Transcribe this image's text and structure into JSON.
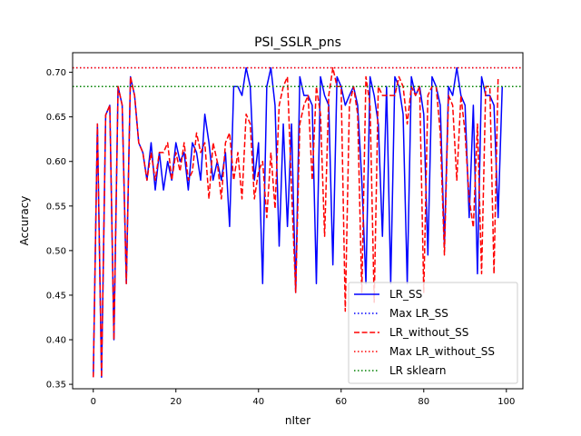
{
  "chart_data": {
    "type": "line",
    "title": "PSI_SSLR_pns",
    "xlabel": "nIter",
    "ylabel": "Accuracy",
    "xlim": [
      -5,
      104
    ],
    "ylim": [
      0.345,
      0.722
    ],
    "xticks": [
      0,
      20,
      40,
      60,
      80,
      100
    ],
    "yticks": [
      0.35,
      0.4,
      0.45,
      0.5,
      0.55,
      0.6,
      0.65,
      0.7
    ],
    "ytick_labels": [
      "0.35",
      "0.40",
      "0.45",
      "0.50",
      "0.55",
      "0.60",
      "0.65",
      "0.70"
    ],
    "grid": false,
    "legend_position": "lower-right",
    "series": [
      {
        "name": "LR_SS",
        "color": "#0000ff",
        "style": "solid",
        "x": [
          0,
          1,
          2,
          3,
          4,
          5,
          6,
          7,
          8,
          9,
          10,
          11,
          12,
          13,
          14,
          15,
          16,
          17,
          18,
          19,
          20,
          21,
          22,
          23,
          24,
          25,
          26,
          27,
          28,
          29,
          30,
          31,
          32,
          33,
          34,
          35,
          36,
          37,
          38,
          39,
          40,
          41,
          42,
          43,
          44,
          45,
          46,
          47,
          48,
          49,
          50,
          51,
          52,
          53,
          54,
          55,
          56,
          57,
          58,
          59,
          60,
          61,
          62,
          63,
          64,
          65,
          66,
          67,
          68,
          69,
          70,
          71,
          72,
          73,
          74,
          75,
          76,
          77,
          78,
          79,
          80,
          81,
          82,
          83,
          84,
          85,
          86,
          87,
          88,
          89,
          90,
          91,
          92,
          93,
          94,
          95,
          96,
          97,
          98,
          99
        ],
        "y": [
          0.358,
          0.642,
          0.358,
          0.652,
          0.663,
          0.4,
          0.684,
          0.663,
          0.463,
          0.695,
          0.674,
          0.621,
          0.61,
          0.579,
          0.621,
          0.568,
          0.61,
          0.568,
          0.6,
          0.579,
          0.621,
          0.6,
          0.61,
          0.568,
          0.621,
          0.61,
          0.579,
          0.653,
          0.621,
          0.579,
          0.6,
          0.579,
          0.61,
          0.527,
          0.684,
          0.684,
          0.674,
          0.705,
          0.684,
          0.579,
          0.621,
          0.463,
          0.684,
          0.705,
          0.663,
          0.505,
          0.642,
          0.527,
          0.642,
          0.453,
          0.695,
          0.674,
          0.674,
          0.663,
          0.463,
          0.695,
          0.674,
          0.663,
          0.484,
          0.695,
          0.684,
          0.663,
          0.674,
          0.684,
          0.663,
          0.579,
          0.463,
          0.695,
          0.674,
          0.642,
          0.516,
          0.684,
          0.463,
          0.695,
          0.684,
          0.653,
          0.463,
          0.695,
          0.674,
          0.684,
          0.653,
          0.495,
          0.695,
          0.684,
          0.663,
          0.505,
          0.684,
          0.674,
          0.705,
          0.674,
          0.663,
          0.537,
          0.663,
          0.474,
          0.695,
          0.674,
          0.674,
          0.663,
          0.537,
          0.684
        ]
      },
      {
        "name": "Max LR_SS",
        "color": "#0000ff",
        "style": "dotted",
        "y_constant": 0.705
      },
      {
        "name": "LR_without_SS",
        "color": "#ff0000",
        "style": "dashed",
        "x": [
          0,
          1,
          2,
          3,
          4,
          5,
          6,
          7,
          8,
          9,
          10,
          11,
          12,
          13,
          14,
          15,
          16,
          17,
          18,
          19,
          20,
          21,
          22,
          23,
          24,
          25,
          26,
          27,
          28,
          29,
          30,
          31,
          32,
          33,
          34,
          35,
          36,
          37,
          38,
          39,
          40,
          41,
          42,
          43,
          44,
          45,
          46,
          47,
          48,
          49,
          50,
          51,
          52,
          53,
          54,
          55,
          56,
          57,
          58,
          59,
          60,
          61,
          62,
          63,
          64,
          65,
          66,
          67,
          68,
          69,
          70,
          71,
          72,
          73,
          74,
          75,
          76,
          77,
          78,
          79,
          80,
          81,
          82,
          83,
          84,
          85,
          86,
          87,
          88,
          89,
          90,
          91,
          92,
          93,
          94,
          95,
          96,
          97,
          98
        ],
        "y": [
          0.358,
          0.642,
          0.358,
          0.652,
          0.663,
          0.4,
          0.684,
          0.663,
          0.463,
          0.695,
          0.674,
          0.621,
          0.61,
          0.579,
          0.61,
          0.579,
          0.61,
          0.61,
          0.621,
          0.579,
          0.61,
          0.589,
          0.621,
          0.579,
          0.589,
          0.632,
          0.61,
          0.621,
          0.558,
          0.621,
          0.6,
          0.558,
          0.621,
          0.632,
          0.579,
          0.61,
          0.558,
          0.653,
          0.642,
          0.558,
          0.589,
          0.6,
          0.537,
          0.61,
          0.547,
          0.663,
          0.684,
          0.695,
          0.568,
          0.453,
          0.642,
          0.663,
          0.674,
          0.579,
          0.684,
          0.653,
          0.516,
          0.674,
          0.705,
          0.684,
          0.684,
          0.432,
          0.663,
          0.684,
          0.653,
          0.453,
          0.695,
          0.663,
          0.442,
          0.684,
          0.674,
          0.674,
          0.674,
          0.674,
          0.695,
          0.684,
          0.642,
          0.684,
          0.674,
          0.684,
          0.453,
          0.674,
          0.684,
          0.684,
          0.632,
          0.495,
          0.674,
          0.663,
          0.579,
          0.674,
          0.632,
          0.558,
          0.526,
          0.642,
          0.474,
          0.684,
          0.684,
          0.474,
          0.695
        ]
      },
      {
        "name": "Max LR_without_SS",
        "color": "#ff0000",
        "style": "dotted",
        "y_constant": 0.705
      },
      {
        "name": "LR sklearn",
        "color": "#008000",
        "style": "dotted",
        "y_constant": 0.684
      }
    ]
  }
}
